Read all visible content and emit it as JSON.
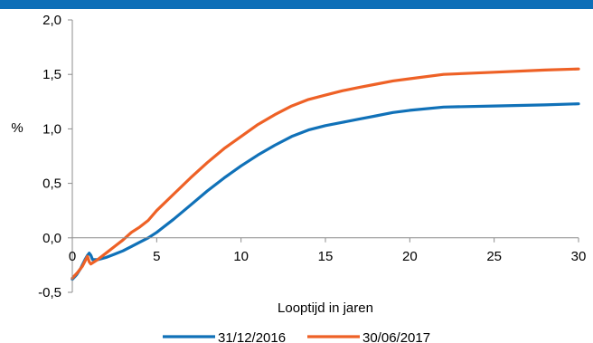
{
  "chart_data": {
    "type": "line",
    "title": "",
    "xlabel": "Looptijd in jaren",
    "ylabel": "%",
    "xlim": [
      0,
      30
    ],
    "ylim": [
      -0.5,
      2.0
    ],
    "x_ticks": [
      0,
      5,
      10,
      15,
      20,
      25,
      30
    ],
    "y_ticks": [
      -0.5,
      0.0,
      0.5,
      1.0,
      1.5,
      2.0
    ],
    "y_tick_labels": [
      "-0,5",
      "0,0",
      "0,5",
      "1,0",
      "1,5",
      "2,0"
    ],
    "grid": false,
    "legend_position": "bottom",
    "series": [
      {
        "name": "31/12/2016",
        "color": "#1071b8",
        "points": [
          [
            0,
            -0.38
          ],
          [
            0.25,
            -0.34
          ],
          [
            0.5,
            -0.28
          ],
          [
            0.75,
            -0.2
          ],
          [
            0.9,
            -0.16
          ],
          [
            1,
            -0.14
          ],
          [
            1.1,
            -0.16
          ],
          [
            1.2,
            -0.2
          ],
          [
            1.5,
            -0.2
          ],
          [
            2,
            -0.18
          ],
          [
            2.5,
            -0.15
          ],
          [
            3,
            -0.12
          ],
          [
            3.5,
            -0.08
          ],
          [
            4,
            -0.04
          ],
          [
            4.5,
            0.0
          ],
          [
            5,
            0.05
          ],
          [
            6,
            0.17
          ],
          [
            7,
            0.3
          ],
          [
            8,
            0.43
          ],
          [
            9,
            0.55
          ],
          [
            10,
            0.66
          ],
          [
            11,
            0.76
          ],
          [
            12,
            0.85
          ],
          [
            13,
            0.93
          ],
          [
            14,
            0.99
          ],
          [
            15,
            1.03
          ],
          [
            16,
            1.06
          ],
          [
            17,
            1.09
          ],
          [
            18,
            1.12
          ],
          [
            19,
            1.15
          ],
          [
            20,
            1.17
          ],
          [
            22,
            1.2
          ],
          [
            25,
            1.21
          ],
          [
            28,
            1.22
          ],
          [
            30,
            1.23
          ]
        ]
      },
      {
        "name": "30/06/2017",
        "color": "#ee6126",
        "points": [
          [
            0,
            -0.37
          ],
          [
            0.3,
            -0.32
          ],
          [
            0.6,
            -0.26
          ],
          [
            0.8,
            -0.2
          ],
          [
            0.9,
            -0.17
          ],
          [
            1,
            -0.22
          ],
          [
            1.1,
            -0.24
          ],
          [
            1.3,
            -0.22
          ],
          [
            1.5,
            -0.2
          ],
          [
            2,
            -0.14
          ],
          [
            2.5,
            -0.08
          ],
          [
            3,
            -0.02
          ],
          [
            3.5,
            0.05
          ],
          [
            4,
            0.1
          ],
          [
            4.5,
            0.16
          ],
          [
            5,
            0.25
          ],
          [
            6,
            0.4
          ],
          [
            7,
            0.55
          ],
          [
            8,
            0.69
          ],
          [
            9,
            0.82
          ],
          [
            10,
            0.93
          ],
          [
            11,
            1.04
          ],
          [
            12,
            1.13
          ],
          [
            13,
            1.21
          ],
          [
            14,
            1.27
          ],
          [
            15,
            1.31
          ],
          [
            16,
            1.35
          ],
          [
            17,
            1.38
          ],
          [
            18,
            1.41
          ],
          [
            19,
            1.44
          ],
          [
            20,
            1.46
          ],
          [
            22,
            1.5
          ],
          [
            25,
            1.52
          ],
          [
            28,
            1.54
          ],
          [
            30,
            1.55
          ]
        ]
      }
    ]
  }
}
